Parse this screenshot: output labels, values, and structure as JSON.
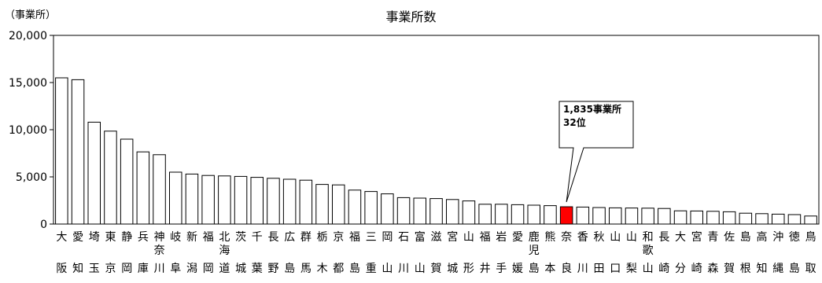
{
  "chart_data": {
    "type": "bar",
    "title": "事業所数",
    "ylabel": "（事業所）",
    "ylim": [
      0,
      20000
    ],
    "yticks": [
      0,
      5000,
      10000,
      15000,
      20000
    ],
    "ytick_labels": [
      "0",
      "5,000",
      "10,000",
      "15,000",
      "20,000"
    ],
    "categories_top": [
      "大",
      "愛",
      "埼",
      "東",
      "静",
      "兵",
      "神\n奈",
      "岐",
      "新",
      "福",
      "北\n海",
      "茨",
      "千",
      "長",
      "広",
      "群",
      "栃",
      "京",
      "福",
      "三",
      "岡",
      "石",
      "富",
      "滋",
      "宮",
      "山",
      "福",
      "岩",
      "愛",
      "鹿\n児",
      "熊",
      "奈",
      "香",
      "秋",
      "山",
      "山",
      "和\n歌",
      "長",
      "大",
      "宮",
      "青",
      "佐",
      "島",
      "高",
      "沖",
      "徳",
      "鳥"
    ],
    "categories_bottom": [
      "阪",
      "知",
      "玉",
      "京",
      "岡",
      "庫",
      "川",
      "阜",
      "潟",
      "岡",
      "道",
      "城",
      "葉",
      "野",
      "島",
      "馬",
      "木",
      "都",
      "島",
      "重",
      "山",
      "川",
      "山",
      "賀",
      "城",
      "形",
      "井",
      "手",
      "媛",
      "島",
      "本",
      "良",
      "川",
      "田",
      "口",
      "梨",
      "山",
      "崎",
      "分",
      "崎",
      "森",
      "賀",
      "根",
      "知",
      "縄",
      "島",
      "取"
    ],
    "values": [
      15500,
      15300,
      10800,
      9850,
      9000,
      7650,
      7350,
      5500,
      5300,
      5150,
      5100,
      5050,
      4950,
      4850,
      4750,
      4650,
      4200,
      4150,
      3600,
      3450,
      3200,
      2800,
      2750,
      2700,
      2600,
      2450,
      2100,
      2100,
      2050,
      2000,
      1950,
      1835,
      1800,
      1750,
      1720,
      1700,
      1680,
      1650,
      1400,
      1380,
      1350,
      1300,
      1150,
      1100,
      1050,
      1000,
      850
    ],
    "highlight_index": 31,
    "colors": {
      "bar": "#ffffff",
      "highlight": "#ff0000",
      "outline": "#000000"
    },
    "annotation": {
      "line1": "1,835事業所",
      "line2": "32位"
    }
  }
}
